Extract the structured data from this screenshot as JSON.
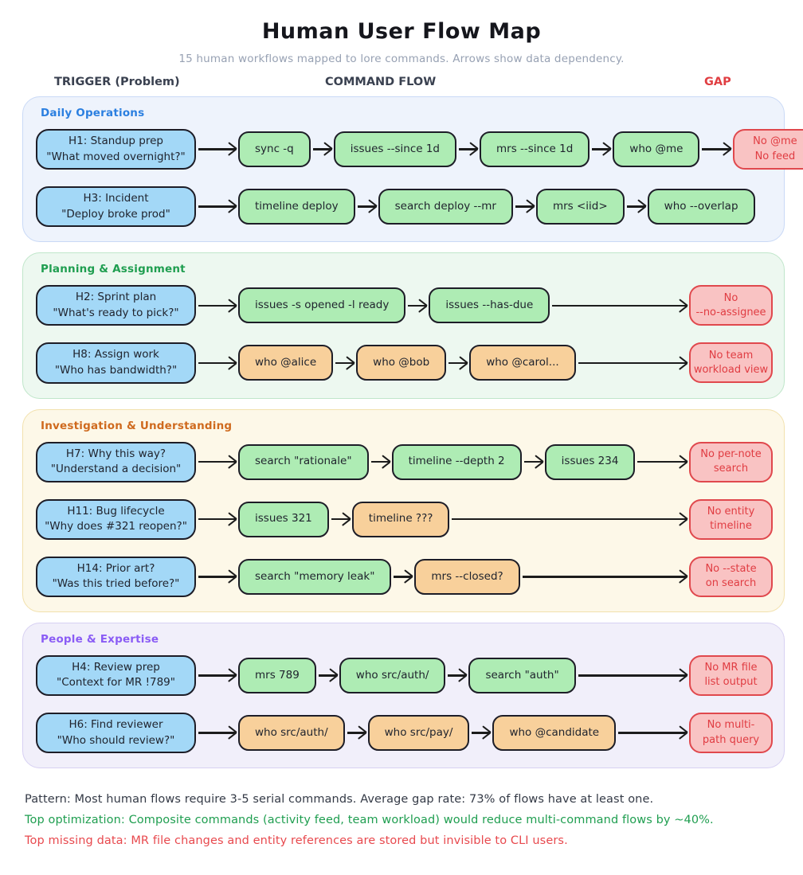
{
  "title": "Human User Flow Map",
  "subtitle": "15 human workflows mapped to lore commands. Arrows show data dependency.",
  "columns": {
    "trigger": "TRIGGER (Problem)",
    "command_flow": "COMMAND FLOW",
    "gap": "GAP"
  },
  "palette": {
    "trigger_bg": "#a3d8f7",
    "green_bg": "#aeecb4",
    "orange_bg": "#f8d09b",
    "gap_bg": "#f9c3c3",
    "gap_border": "#e0484d",
    "gap_text": "#e03c42",
    "node_border": "#1d1d27",
    "arrow": "#1c1c1c"
  },
  "sections": [
    {
      "label": "Daily Operations",
      "accent": "#2b7fe0",
      "bg": "#eef3fc",
      "border": "#c9d9f6",
      "rows": [
        {
          "trigger": [
            "H1: Standup prep",
            "\"What moved overnight?\""
          ],
          "commands": [
            {
              "text": "sync -q",
              "style": "green"
            },
            {
              "text": "issues --since 1d",
              "style": "green"
            },
            {
              "text": "mrs --since 1d",
              "style": "green"
            },
            {
              "text": "who @me",
              "style": "green"
            }
          ],
          "gap": [
            "No @me",
            "No feed"
          ]
        },
        {
          "trigger": [
            "H3: Incident",
            "\"Deploy broke prod\""
          ],
          "commands": [
            {
              "text": "timeline deploy",
              "style": "green"
            },
            {
              "text": "search deploy --mr",
              "style": "green"
            },
            {
              "text": "mrs <iid>",
              "style": "green"
            },
            {
              "text": "who --overlap",
              "style": "green"
            }
          ],
          "gap": null
        }
      ]
    },
    {
      "label": "Planning & Assignment",
      "accent": "#1f9e50",
      "bg": "#edf8f0",
      "border": "#c0e6ca",
      "rows": [
        {
          "trigger": [
            "H2: Sprint plan",
            "\"What's ready to pick?\""
          ],
          "commands": [
            {
              "text": "issues -s opened -l ready",
              "style": "green"
            },
            {
              "text": "issues --has-due",
              "style": "green"
            }
          ],
          "gap": [
            "No",
            "--no-assignee"
          ]
        },
        {
          "trigger": [
            "H8: Assign work",
            "\"Who has bandwidth?\""
          ],
          "commands": [
            {
              "text": "who @alice",
              "style": "orange"
            },
            {
              "text": "who @bob",
              "style": "orange"
            },
            {
              "text": "who @carol...",
              "style": "orange"
            }
          ],
          "gap": [
            "No team",
            "workload view"
          ]
        }
      ]
    },
    {
      "label": "Investigation & Understanding",
      "accent": "#cf6a1e",
      "bg": "#fdf8e8",
      "border": "#f2e1ad",
      "rows": [
        {
          "trigger": [
            "H7: Why this way?",
            "\"Understand a decision\""
          ],
          "commands": [
            {
              "text": "search \"rationale\"",
              "style": "green"
            },
            {
              "text": "timeline --depth 2",
              "style": "green"
            },
            {
              "text": "issues 234",
              "style": "green"
            }
          ],
          "gap": [
            "No per-note",
            "search"
          ]
        },
        {
          "trigger": [
            "H11: Bug lifecycle",
            "\"Why does #321 reopen?\""
          ],
          "commands": [
            {
              "text": "issues 321",
              "style": "green"
            },
            {
              "text": "timeline ???",
              "style": "orange"
            }
          ],
          "gap": [
            "No entity",
            "timeline"
          ]
        },
        {
          "trigger": [
            "H14: Prior art?",
            "\"Was this tried before?\""
          ],
          "commands": [
            {
              "text": "search \"memory leak\"",
              "style": "green"
            },
            {
              "text": "mrs --closed?",
              "style": "orange"
            }
          ],
          "gap": [
            "No --state",
            "on search"
          ]
        }
      ]
    },
    {
      "label": "People & Expertise",
      "accent": "#8a5cf5",
      "bg": "#f1effa",
      "border": "#d7d0f2",
      "rows": [
        {
          "trigger": [
            "H4: Review prep",
            "\"Context for MR !789\""
          ],
          "commands": [
            {
              "text": "mrs 789",
              "style": "green"
            },
            {
              "text": "who src/auth/",
              "style": "green"
            },
            {
              "text": "search \"auth\"",
              "style": "green"
            }
          ],
          "gap": [
            "No MR file",
            "list output"
          ]
        },
        {
          "trigger": [
            "H6: Find reviewer",
            "\"Who should review?\""
          ],
          "commands": [
            {
              "text": "who src/auth/",
              "style": "orange"
            },
            {
              "text": "who src/pay/",
              "style": "orange"
            },
            {
              "text": "who @candidate",
              "style": "orange"
            }
          ],
          "gap": [
            "No multi-",
            "path query"
          ]
        }
      ]
    }
  ],
  "footer": [
    {
      "text": "Pattern: Most human flows require 3-5 serial commands. Average gap rate: 73% of flows have at least one.",
      "color": "#343a46"
    },
    {
      "text": "Top optimization: Composite commands (activity feed, team workload) would reduce multi-command flows by ~40%.",
      "color": "#1f9e50"
    },
    {
      "text": "Top missing data: MR file changes and entity references are stored but invisible to CLI users.",
      "color": "#e8494e"
    }
  ]
}
